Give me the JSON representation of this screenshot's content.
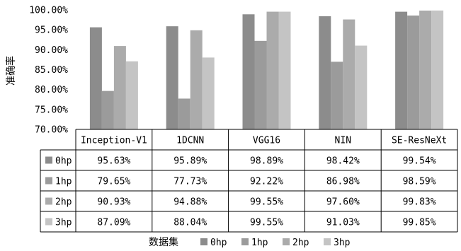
{
  "chart_data": {
    "type": "bar",
    "ylabel": "准确率",
    "ylim": [
      70,
      100
    ],
    "yticks": [
      "70.00%",
      "75.00%",
      "80.00%",
      "85.00%",
      "90.00%",
      "95.00%",
      "100.00%"
    ],
    "categories": [
      "Inception-V1",
      "1DCNN",
      "VGG16",
      "NIN",
      "SE-ResNeXt"
    ],
    "series": [
      {
        "name": "0hp",
        "color": "#8c8c8c",
        "values": [
          95.63,
          95.89,
          98.89,
          98.42,
          99.54
        ],
        "labels": [
          "95.63%",
          "95.89%",
          "98.89%",
          "98.42%",
          "99.54%"
        ]
      },
      {
        "name": "1hp",
        "color": "#9b9b9b",
        "values": [
          79.65,
          77.73,
          92.22,
          86.98,
          98.59
        ],
        "labels": [
          "79.65%",
          "77.73%",
          "92.22%",
          "86.98%",
          "98.59%"
        ]
      },
      {
        "name": "2hp",
        "color": "#ababab",
        "values": [
          90.93,
          94.88,
          99.55,
          97.6,
          99.83
        ],
        "labels": [
          "90.93%",
          "94.88%",
          "99.55%",
          "97.60%",
          "99.83%"
        ]
      },
      {
        "name": "3hp",
        "color": "#c4c4c4",
        "values": [
          87.09,
          88.04,
          99.55,
          91.03,
          99.85
        ],
        "labels": [
          "87.09%",
          "88.04%",
          "99.55%",
          "91.03%",
          "99.85%"
        ]
      }
    ],
    "legend_title": "数据集",
    "legend_position": "bottom",
    "grid": false
  }
}
